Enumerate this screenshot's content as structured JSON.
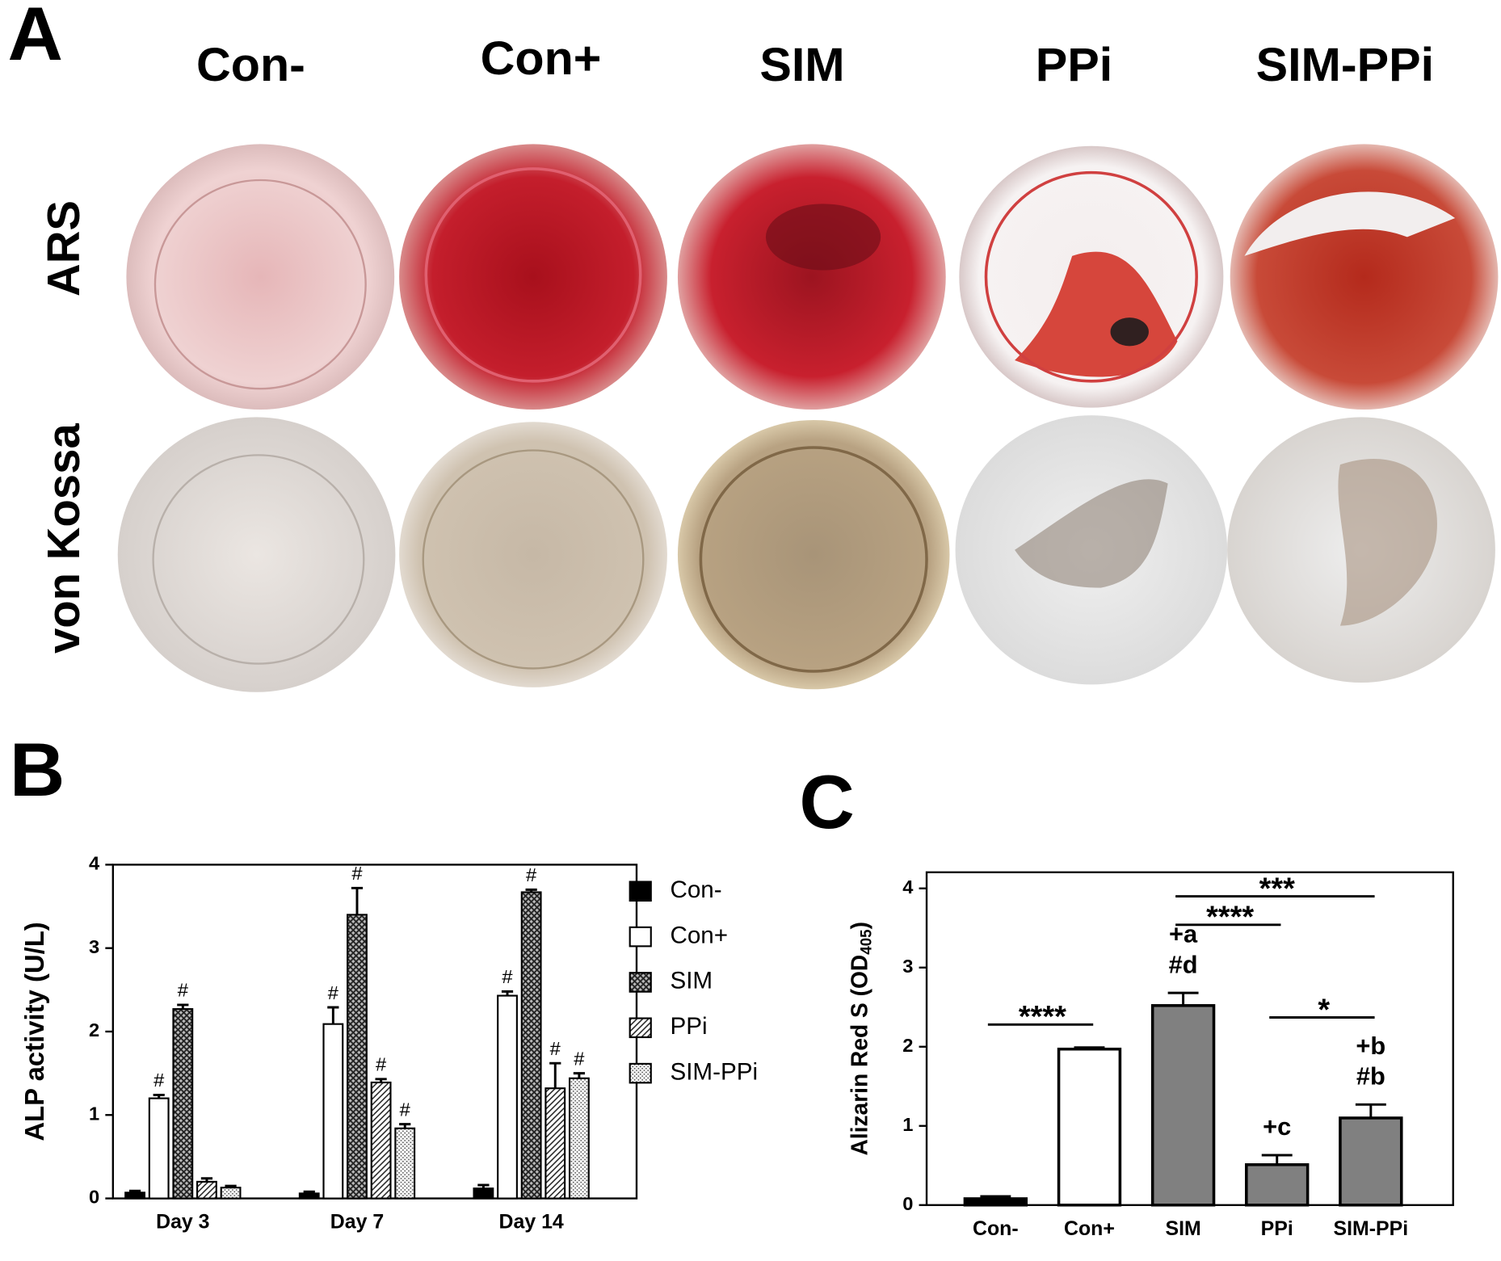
{
  "panel_a": {
    "label": "A",
    "columns": [
      "Con-",
      "Con+",
      "SIM",
      "PPi",
      "SIM-PPi"
    ],
    "rows": [
      "ARS",
      "von Kossa"
    ]
  },
  "chart_data": [
    {
      "type": "bar",
      "panel": "B",
      "ylabel": "ALP activity (U/L)",
      "categories": [
        "Day 3",
        "Day 7",
        "Day 14"
      ],
      "ylim": [
        0,
        4
      ],
      "yticks": [
        0,
        1,
        2,
        3,
        4
      ],
      "legend": "right",
      "series": [
        {
          "name": "Con-",
          "color": "#000000",
          "pattern": "solid",
          "values": [
            0.07,
            0.06,
            0.12
          ],
          "errors": [
            0.02,
            0.02,
            0.04
          ],
          "annotations": [
            null,
            null,
            null
          ]
        },
        {
          "name": "Con+",
          "color": "#ffffff",
          "pattern": "solid",
          "values": [
            1.2,
            2.09,
            2.43
          ],
          "errors": [
            0.04,
            0.2,
            0.05
          ],
          "annotations": [
            "#",
            "#",
            "#"
          ]
        },
        {
          "name": "SIM",
          "color": "#555555",
          "pattern": "crosshatch",
          "values": [
            2.27,
            3.4,
            3.67
          ],
          "errors": [
            0.05,
            0.32,
            0.03
          ],
          "annotations": [
            "#",
            "#",
            "#"
          ]
        },
        {
          "name": "PPi",
          "color": "#333333",
          "pattern": "diagonal",
          "values": [
            0.2,
            1.39,
            1.32
          ],
          "errors": [
            0.04,
            0.04,
            0.3
          ],
          "annotations": [
            null,
            "#",
            "#"
          ]
        },
        {
          "name": "SIM-PPi",
          "color": "#666666",
          "pattern": "dots",
          "values": [
            0.13,
            0.84,
            1.44
          ],
          "errors": [
            0.02,
            0.05,
            0.06
          ],
          "annotations": [
            null,
            "#",
            "#"
          ]
        }
      ]
    },
    {
      "type": "bar",
      "panel": "C",
      "ylabel": "Alizarin Red S (OD",
      "ylabel_sub": "405",
      "ylabel_end": ")",
      "categories": [
        "Con-",
        "Con+",
        "SIM",
        "PPi",
        "SIM-PPi"
      ],
      "values": [
        0.08,
        1.97,
        2.52,
        0.51,
        1.1
      ],
      "errors": [
        0.03,
        0.02,
        0.16,
        0.12,
        0.17
      ],
      "colors": [
        "#000000",
        "#ffffff",
        "#808080",
        "#808080",
        "#808080"
      ],
      "annotations": [
        [],
        [],
        [
          "+a",
          "#d"
        ],
        [
          "+c"
        ],
        [
          "+b",
          "#b"
        ]
      ],
      "significance": [
        {
          "from": 0,
          "to": 1,
          "label": "****",
          "y": 2.28
        },
        {
          "from": 2,
          "to": 3,
          "label": "****",
          "y": 3.54
        },
        {
          "from": 2,
          "to": 4,
          "label": "***",
          "y": 3.9
        },
        {
          "from": 3,
          "to": 4,
          "label": "*",
          "y": 2.37
        }
      ],
      "ylim": [
        0,
        4
      ],
      "yticks": [
        0,
        1,
        2,
        3,
        4
      ]
    }
  ]
}
